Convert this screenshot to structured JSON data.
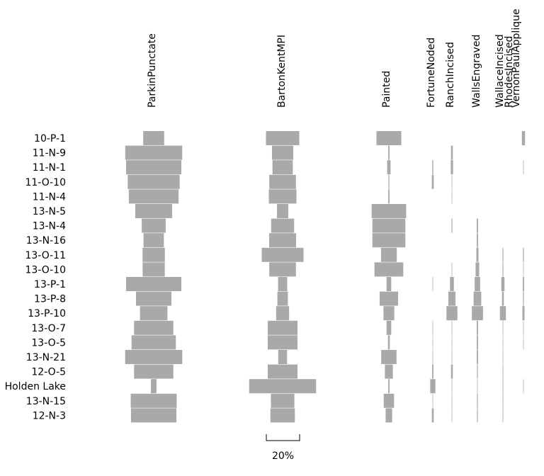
{
  "chart_data": {
    "type": "bar",
    "orientation": "horizontal",
    "style": "battleship",
    "bar_color": "#a9a9a9",
    "categories": [
      "10-P-1",
      "11-N-9",
      "11-N-1",
      "11-O-10",
      "11-N-4",
      "13-N-5",
      "13-N-4",
      "13-N-16",
      "13-O-11",
      "13-O-10",
      "13-P-1",
      "13-P-8",
      "13-P-10",
      "13-O-7",
      "13-O-5",
      "13-N-21",
      "12-O-5",
      "Holden Lake",
      "13-N-15",
      "12-N-3"
    ],
    "series": [
      {
        "name": "ParkinPunctate",
        "values": [
          12.6,
          34.2,
          33.2,
          31.2,
          29.9,
          22.2,
          14.4,
          12.2,
          13.4,
          13.3,
          33.2,
          21.3,
          16.5,
          23.6,
          26.6,
          34.3,
          23.6,
          3.3,
          27.6,
          27.3
        ]
      },
      {
        "name": "BartonKentMPI",
        "values": [
          20.0,
          12.8,
          12.2,
          16.0,
          16.6,
          6.8,
          13.8,
          16.2,
          25.1,
          16.0,
          5.5,
          6.3,
          7.8,
          17.9,
          17.9,
          5.3,
          17.9,
          40.2,
          14.1,
          14.7
        ]
      },
      {
        "name": "Painted",
        "values": [
          14.9,
          0.8,
          2.0,
          0.5,
          0.8,
          20.7,
          19.8,
          19.8,
          9.5,
          17.3,
          2.8,
          11.1,
          6.5,
          2.8,
          1.1,
          9.2,
          4.8,
          0.8,
          6.2,
          3.9
        ]
      },
      {
        "name": "FortuneNoded",
        "values": [
          0,
          0,
          0.6,
          1.2,
          0,
          0,
          0,
          0,
          0,
          0,
          0.3,
          0,
          0,
          0.3,
          0.3,
          0.3,
          0.8,
          3.1,
          0.3,
          1.1
        ]
      },
      {
        "name": "RanchIncised",
        "values": [
          0,
          1.1,
          1.4,
          0.3,
          0.3,
          0,
          0.5,
          0,
          0,
          0.3,
          2.3,
          4.3,
          6.6,
          0.3,
          0.3,
          0.3,
          1.1,
          0.3,
          0.3,
          0.3
        ]
      },
      {
        "name": "WallsEngraved",
        "values": [
          0,
          0,
          0,
          0,
          0,
          0,
          0.8,
          0.8,
          1.3,
          2.2,
          3.3,
          4.6,
          6.7,
          0.8,
          0.8,
          0.8,
          0.5,
          0.3,
          0.5,
          0.5
        ]
      },
      {
        "name": "WallaceIncised",
        "values": [
          0,
          0,
          0,
          0,
          0,
          0,
          0,
          0,
          0,
          0,
          0,
          0,
          0,
          0,
          0,
          0,
          0.3,
          0.3,
          0.3,
          0.3
        ]
      },
      {
        "name": "RhodesIncised",
        "values": [
          0,
          0,
          0,
          0,
          0,
          0,
          0,
          0,
          0.5,
          0.5,
          1.9,
          1.1,
          3.6,
          0.3,
          0.3,
          0.3,
          0.3,
          0.3,
          0.3,
          0.3
        ]
      },
      {
        "name": "VernonPaulApplique",
        "values": [
          1.9,
          0,
          0.3,
          0,
          0,
          0,
          0,
          0,
          0.5,
          0.3,
          0.8,
          0.5,
          1.3,
          0.3,
          0.3,
          0,
          0,
          0.3,
          0,
          0
        ]
      }
    ],
    "scale_bar_label": "20%",
    "scale_bar_value": 20,
    "grid": false,
    "legend": "none"
  }
}
